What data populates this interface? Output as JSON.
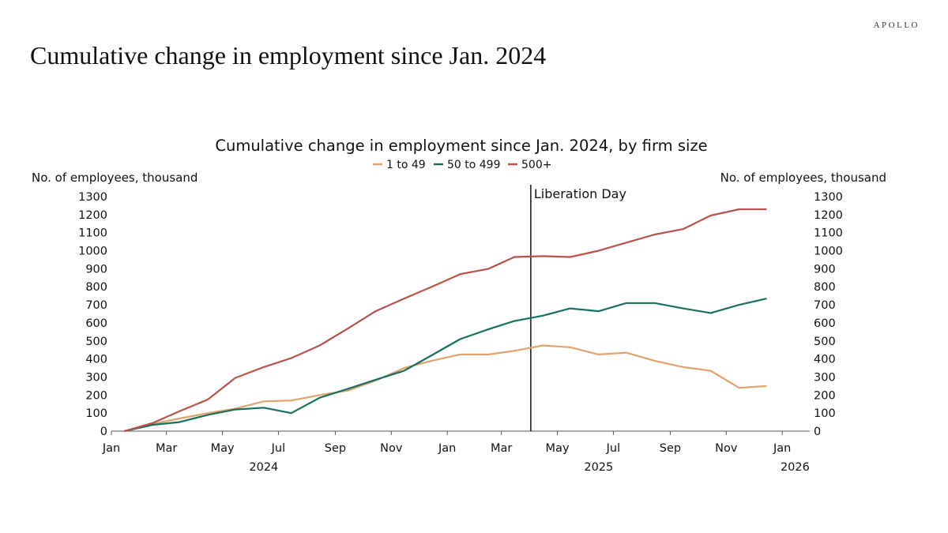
{
  "brand": "APOLLO",
  "slide_title": "Cumulative change in employment since Jan. 2024",
  "chart_data": {
    "type": "line",
    "title": "Cumulative change in employment since Jan. 2024, by firm size",
    "ylabel_left": "No. of employees, thousand",
    "ylabel_right": "No. of employees, thousand",
    "ylim": [
      0,
      1300
    ],
    "y_ticks": [
      0,
      100,
      200,
      300,
      400,
      500,
      600,
      700,
      800,
      900,
      1000,
      1100,
      1200,
      1300
    ],
    "x_range": [
      "2024-01-01",
      "2026-01-31"
    ],
    "x_ticks": [
      {
        "date": "2024-01-01",
        "label": "Jan"
      },
      {
        "date": "2024-03-01",
        "label": "Mar"
      },
      {
        "date": "2024-05-01",
        "label": "May"
      },
      {
        "date": "2024-07-01",
        "label": "Jul"
      },
      {
        "date": "2024-09-01",
        "label": "Sep"
      },
      {
        "date": "2024-11-01",
        "label": "Nov"
      },
      {
        "date": "2025-01-01",
        "label": "Jan"
      },
      {
        "date": "2025-03-01",
        "label": "Mar"
      },
      {
        "date": "2025-05-01",
        "label": "May"
      },
      {
        "date": "2025-07-01",
        "label": "Jul"
      },
      {
        "date": "2025-09-01",
        "label": "Sep"
      },
      {
        "date": "2025-11-01",
        "label": "Nov"
      },
      {
        "date": "2026-01-01",
        "label": "Jan"
      }
    ],
    "year_labels": [
      {
        "date": "2024-06-15",
        "label": "2024"
      },
      {
        "date": "2025-06-15",
        "label": "2025"
      },
      {
        "date": "2026-01-15",
        "label": "2026"
      }
    ],
    "dates": [
      "2024-01-15",
      "2024-02-15",
      "2024-03-15",
      "2024-04-15",
      "2024-05-15",
      "2024-06-15",
      "2024-07-15",
      "2024-08-15",
      "2024-09-15",
      "2024-10-15",
      "2024-11-15",
      "2024-12-15",
      "2025-01-15",
      "2025-02-15",
      "2025-03-15",
      "2025-04-15",
      "2025-05-15",
      "2025-06-15",
      "2025-07-15",
      "2025-08-15",
      "2025-09-15",
      "2025-10-15",
      "2025-11-15",
      "2025-12-15"
    ],
    "series": [
      {
        "name": "1 to 49",
        "color": "#e0a36c",
        "values": [
          0,
          40,
          70,
          100,
          125,
          165,
          170,
          200,
          225,
          280,
          350,
          390,
          425,
          425,
          445,
          475,
          465,
          425,
          435,
          390,
          355,
          335,
          240,
          250
        ]
      },
      {
        "name": "50 to 499",
        "color": "#17705f",
        "values": [
          0,
          35,
          50,
          90,
          120,
          130,
          100,
          185,
          235,
          285,
          335,
          420,
          510,
          565,
          610,
          640,
          680,
          665,
          710,
          710,
          680,
          655,
          700,
          735
        ]
      },
      {
        "name": "500+",
        "color": "#b9524a",
        "values": [
          0,
          45,
          110,
          175,
          295,
          355,
          405,
          475,
          570,
          665,
          735,
          800,
          870,
          900,
          965,
          970,
          965,
          1000,
          1045,
          1090,
          1120,
          1195,
          1230,
          1230
        ]
      }
    ],
    "annotation": {
      "date": "2025-04-02",
      "label": "Liberation Day"
    },
    "legend_position": "top-center",
    "grid": false
  }
}
